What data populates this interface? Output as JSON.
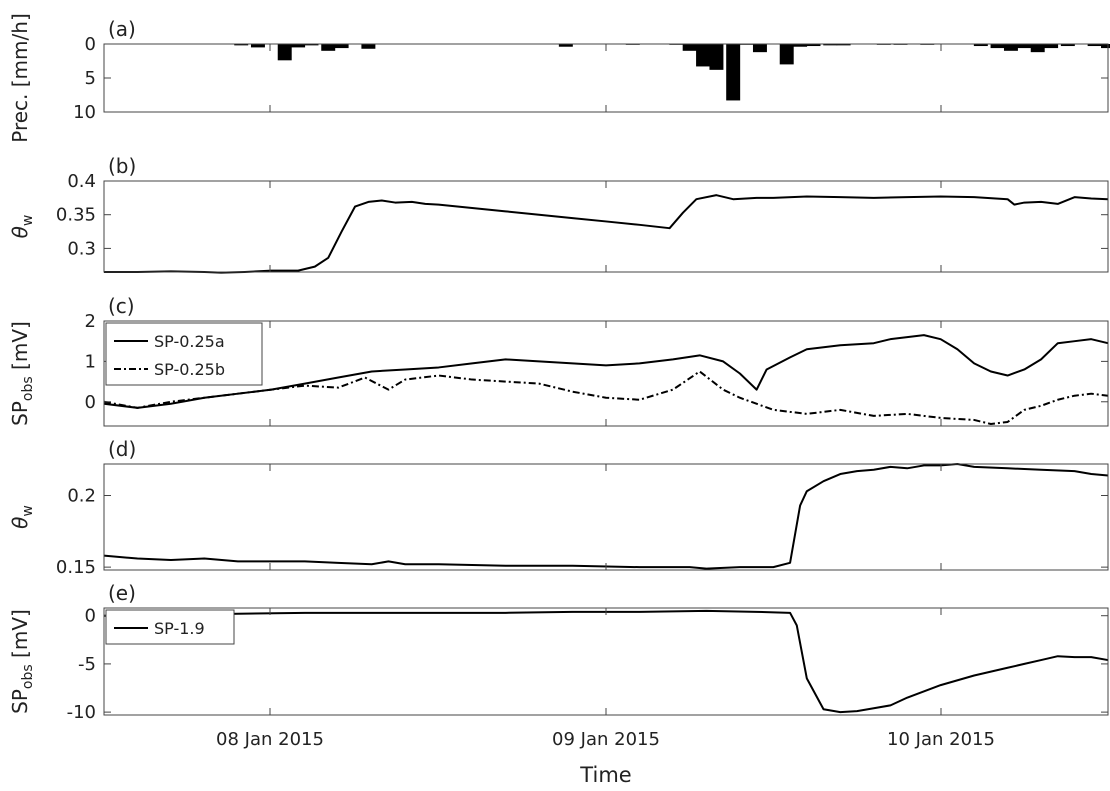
{
  "chart_data": {
    "type": "line",
    "x_axis": {
      "label": "Time",
      "ticks": [
        "08 Jan 2015",
        "09 Jan 2015",
        "10 Jan 2015"
      ],
      "range_days": [
        7.5,
        10.5
      ],
      "note_units": "days of January 2015"
    },
    "panels": [
      {
        "id": "a",
        "panel_label": "(a)",
        "type": "bar",
        "ylabel": "Prec. [mm/h]",
        "ylim": [
          10,
          0
        ],
        "yticks": [
          0,
          5,
          10
        ],
        "inverted": true,
        "bar_width_days": 0.0417,
        "x": [
          7.91,
          7.96,
          8.04,
          8.08,
          8.12,
          8.17,
          8.21,
          8.29,
          8.88,
          9.08,
          9.21,
          9.25,
          9.29,
          9.33,
          9.38,
          9.42,
          9.46,
          9.54,
          9.58,
          9.62,
          9.67,
          9.71,
          9.83,
          9.88,
          9.96,
          10.12,
          10.17,
          10.21,
          10.25,
          10.29,
          10.33,
          10.38,
          10.46,
          10.5
        ],
        "values": [
          0.2,
          0.5,
          2.4,
          0.5,
          0.2,
          1.0,
          0.6,
          0.7,
          0.4,
          0.1,
          0.1,
          1.0,
          3.3,
          3.8,
          8.3,
          0.1,
          1.2,
          3.0,
          0.4,
          0.3,
          0.2,
          0.2,
          0.1,
          0.1,
          0.1,
          0.3,
          0.6,
          1.0,
          0.6,
          1.2,
          0.6,
          0.3,
          0.3,
          0.6
        ]
      },
      {
        "id": "b",
        "panel_label": "(b)",
        "type": "line",
        "ylabel": "θw",
        "ylim": [
          0.265,
          0.4
        ],
        "yticks": [
          0.3,
          0.35,
          0.4
        ],
        "series": [
          {
            "style": "solid",
            "x": [
              7.5,
              7.6,
              7.7,
              7.8,
              7.85,
              7.92,
              8.0,
              8.08,
              8.13,
              8.17,
              8.21,
              8.25,
              8.29,
              8.33,
              8.37,
              8.42,
              8.46,
              8.5,
              8.6,
              8.7,
              8.8,
              8.9,
              9.0,
              9.1,
              9.19,
              9.23,
              9.27,
              9.33,
              9.38,
              9.45,
              9.5,
              9.6,
              9.7,
              9.8,
              9.9,
              10.0,
              10.1,
              10.2,
              10.22,
              10.25,
              10.3,
              10.35,
              10.4,
              10.45,
              10.5
            ],
            "y": [
              0.265,
              0.265,
              0.266,
              0.265,
              0.264,
              0.265,
              0.267,
              0.267,
              0.273,
              0.286,
              0.325,
              0.362,
              0.369,
              0.371,
              0.368,
              0.369,
              0.366,
              0.365,
              0.36,
              0.355,
              0.35,
              0.345,
              0.34,
              0.335,
              0.33,
              0.353,
              0.373,
              0.379,
              0.373,
              0.375,
              0.375,
              0.377,
              0.376,
              0.375,
              0.376,
              0.377,
              0.376,
              0.373,
              0.365,
              0.368,
              0.369,
              0.366,
              0.376,
              0.374,
              0.373
            ]
          }
        ]
      },
      {
        "id": "c",
        "panel_label": "(c)",
        "type": "line",
        "ylabel": "SPobs [mV]",
        "ylim": [
          -0.6,
          2.0
        ],
        "yticks": [
          0,
          1,
          2
        ],
        "series": [
          {
            "name": "SP-0.25a",
            "style": "solid",
            "x": [
              7.5,
              7.6,
              7.7,
              7.8,
              7.9,
              8.0,
              8.1,
              8.2,
              8.3,
              8.4,
              8.5,
              8.6,
              8.7,
              8.8,
              8.9,
              9.0,
              9.1,
              9.2,
              9.28,
              9.35,
              9.4,
              9.45,
              9.48,
              9.55,
              9.6,
              9.7,
              9.8,
              9.85,
              9.9,
              9.95,
              10.0,
              10.05,
              10.1,
              10.15,
              10.2,
              10.25,
              10.3,
              10.35,
              10.4,
              10.45,
              10.5
            ],
            "y": [
              -0.05,
              -0.15,
              -0.05,
              0.1,
              0.2,
              0.3,
              0.45,
              0.6,
              0.75,
              0.8,
              0.85,
              0.95,
              1.05,
              1.0,
              0.95,
              0.9,
              0.95,
              1.05,
              1.15,
              1.0,
              0.7,
              0.3,
              0.8,
              1.1,
              1.3,
              1.4,
              1.45,
              1.55,
              1.6,
              1.65,
              1.55,
              1.3,
              0.95,
              0.75,
              0.65,
              0.8,
              1.05,
              1.45,
              1.5,
              1.55,
              1.45
            ]
          },
          {
            "name": "SP-0.25b",
            "style": "dashdot",
            "x": [
              7.5,
              7.6,
              7.7,
              7.8,
              7.9,
              8.0,
              8.1,
              8.2,
              8.28,
              8.35,
              8.4,
              8.5,
              8.6,
              8.7,
              8.8,
              8.9,
              9.0,
              9.1,
              9.2,
              9.28,
              9.35,
              9.4,
              9.5,
              9.6,
              9.7,
              9.8,
              9.9,
              10.0,
              10.1,
              10.15,
              10.2,
              10.25,
              10.3,
              10.35,
              10.4,
              10.45,
              10.5
            ],
            "y": [
              0.0,
              -0.15,
              0.0,
              0.1,
              0.2,
              0.3,
              0.4,
              0.35,
              0.6,
              0.3,
              0.55,
              0.65,
              0.55,
              0.5,
              0.45,
              0.25,
              0.1,
              0.05,
              0.3,
              0.75,
              0.3,
              0.1,
              -0.2,
              -0.3,
              -0.2,
              -0.35,
              -0.3,
              -0.4,
              -0.45,
              -0.55,
              -0.5,
              -0.2,
              -0.1,
              0.05,
              0.15,
              0.2,
              0.15
            ]
          }
        ]
      },
      {
        "id": "d",
        "panel_label": "(d)",
        "type": "line",
        "ylabel": "θw",
        "ylim": [
          0.148,
          0.222
        ],
        "yticks": [
          0.15,
          0.2
        ],
        "series": [
          {
            "style": "solid",
            "x": [
              7.5,
              7.6,
              7.7,
              7.8,
              7.9,
              8.0,
              8.1,
              8.2,
              8.3,
              8.35,
              8.4,
              8.5,
              8.7,
              8.9,
              9.1,
              9.25,
              9.3,
              9.4,
              9.5,
              9.55,
              9.58,
              9.6,
              9.65,
              9.7,
              9.75,
              9.8,
              9.85,
              9.9,
              9.95,
              10.0,
              10.05,
              10.1,
              10.2,
              10.3,
              10.4,
              10.45,
              10.5
            ],
            "y": [
              0.158,
              0.156,
              0.155,
              0.156,
              0.154,
              0.154,
              0.154,
              0.153,
              0.152,
              0.154,
              0.152,
              0.152,
              0.151,
              0.151,
              0.15,
              0.15,
              0.149,
              0.15,
              0.15,
              0.153,
              0.193,
              0.203,
              0.21,
              0.215,
              0.217,
              0.218,
              0.22,
              0.219,
              0.221,
              0.221,
              0.222,
              0.22,
              0.219,
              0.218,
              0.217,
              0.215,
              0.214
            ]
          }
        ]
      },
      {
        "id": "e",
        "panel_label": "(e)",
        "type": "line",
        "ylabel": "SPobs [mV]",
        "ylim": [
          -10.3,
          0.8
        ],
        "yticks": [
          -10,
          -5,
          0
        ],
        "series": [
          {
            "name": "SP-1.9",
            "style": "solid",
            "x": [
              7.5,
              7.7,
              7.9,
              8.1,
              8.3,
              8.5,
              8.7,
              8.9,
              9.1,
              9.3,
              9.45,
              9.55,
              9.57,
              9.6,
              9.65,
              9.7,
              9.75,
              9.8,
              9.85,
              9.9,
              10.0,
              10.1,
              10.15,
              10.2,
              10.25,
              10.3,
              10.35,
              10.4,
              10.45,
              10.5
            ],
            "y": [
              0.0,
              0.1,
              0.2,
              0.3,
              0.3,
              0.3,
              0.3,
              0.4,
              0.4,
              0.5,
              0.4,
              0.3,
              -1.0,
              -6.5,
              -9.7,
              -10.0,
              -9.9,
              -9.6,
              -9.3,
              -8.5,
              -7.2,
              -6.2,
              -5.8,
              -5.4,
              -5.0,
              -4.6,
              -4.2,
              -4.3,
              -4.3,
              -4.6
            ]
          }
        ]
      }
    ]
  }
}
